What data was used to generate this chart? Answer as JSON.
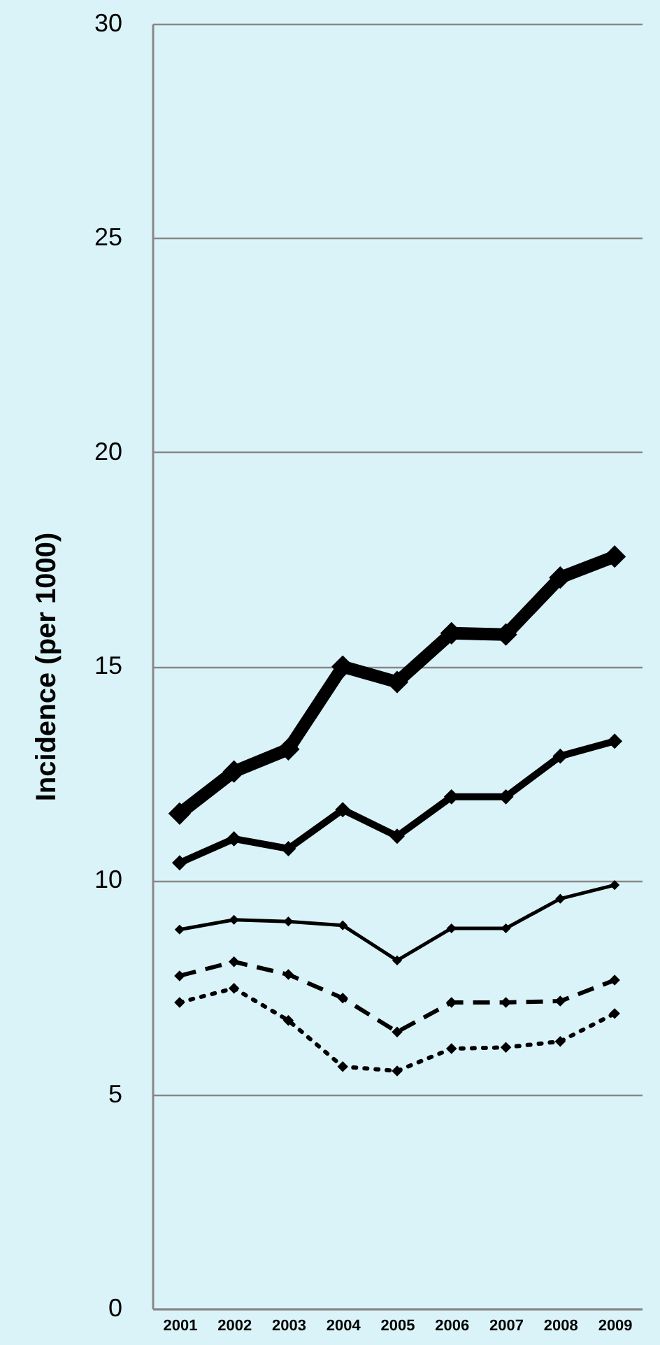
{
  "chart_data": {
    "type": "line",
    "ylabel": "Incidence (per 1000)",
    "categories": [
      "2001",
      "2002",
      "2003",
      "2004",
      "2005",
      "2006",
      "2007",
      "2008",
      "2009"
    ],
    "ylim": [
      0,
      30
    ],
    "yticks": [
      0,
      5,
      10,
      15,
      20,
      25,
      30
    ],
    "grid": "y",
    "marker": "diamond",
    "series": [
      {
        "color": "#000000",
        "line_style": "solid",
        "values": [
          11.56,
          12.54,
          13.06,
          14.99,
          14.63,
          15.77,
          15.74,
          17.07,
          17.56
        ]
      },
      {
        "color": "#000000",
        "line_style": "solid",
        "values": [
          10.41,
          10.97,
          10.74,
          11.65,
          11.03,
          11.95,
          11.95,
          12.9,
          13.25
        ]
      },
      {
        "color": "#000000",
        "line_style": "solid",
        "values": [
          8.85,
          9.08,
          9.04,
          8.95,
          8.13,
          8.88,
          8.88,
          9.57,
          9.89
        ]
      },
      {
        "color": "#000000",
        "line_style": "dashed",
        "values": [
          7.77,
          8.1,
          7.8,
          7.25,
          6.46,
          7.15,
          7.15,
          7.18,
          7.67
        ]
      },
      {
        "color": "#000000",
        "line_style": "dotted",
        "values": [
          7.15,
          7.48,
          6.73,
          5.65,
          5.55,
          6.07,
          6.1,
          6.24,
          6.89
        ]
      }
    ]
  }
}
